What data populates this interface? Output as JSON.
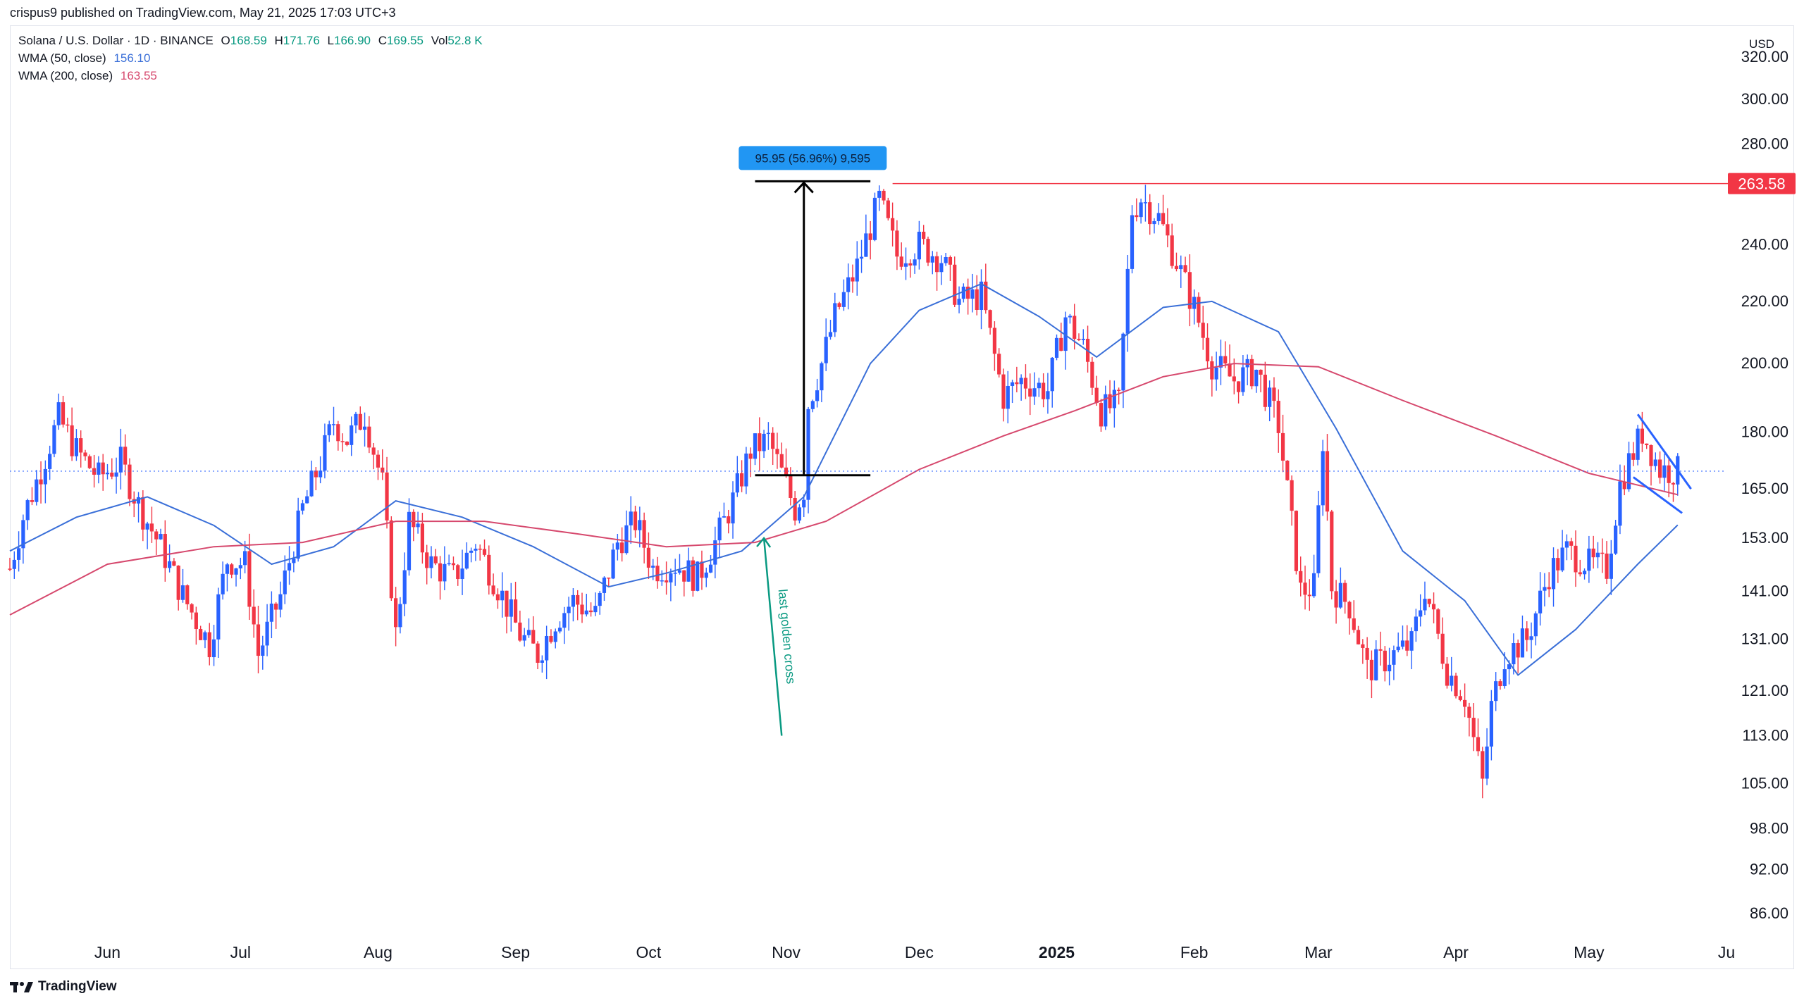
{
  "header": {
    "published_line": "crispus9 published on TradingView.com, May 21, 2025 17:03 UTC+3"
  },
  "legend": {
    "symbol": "Solana / U.S. Dollar · 1D · BINANCE",
    "o_label": "O",
    "o_value": "168.59",
    "h_label": "H",
    "h_value": "171.76",
    "l_label": "L",
    "l_value": "166.90",
    "c_label": "C",
    "c_value": "169.55",
    "vol_label": "Vol",
    "vol_value": "52.8 K",
    "wma50_label": "WMA (50, close)",
    "wma50_value": "156.10",
    "wma200_label": "WMA (200, close)",
    "wma200_value": "163.55"
  },
  "footer": {
    "brand": "TradingView",
    "logo": "tradingview-logo-icon"
  },
  "colors": {
    "up": "#2962ff",
    "down": "#f23645",
    "wma50": "#3a6fd8",
    "wma200": "#d6486d",
    "resistance": "#f23645",
    "golden_cross": "#089981",
    "measure_label": "#2196f3"
  },
  "chart_data": {
    "type": "candlestick",
    "currency_label": "USD",
    "y_ticks": [
      86,
      92,
      98,
      105,
      113,
      121,
      131,
      141,
      153,
      165,
      180,
      200,
      220,
      240,
      260,
      280,
      300,
      320
    ],
    "y_tick_labels": [
      "86.00",
      "92.00",
      "98.00",
      "105.00",
      "113.00",
      "121.00",
      "131.00",
      "141.00",
      "153.00",
      "165.00",
      "180.00",
      "200.00",
      "220.00",
      "240.00",
      "",
      "280.00",
      "300.00",
      "320.00"
    ],
    "y_scale": "log",
    "ylim": [
      83,
      336
    ],
    "x_ticks": [
      {
        "date": "2024-06-01",
        "label": "Jun"
      },
      {
        "date": "2024-07-01",
        "label": "Jul"
      },
      {
        "date": "2024-08-01",
        "label": "Aug"
      },
      {
        "date": "2024-09-01",
        "label": "Sep"
      },
      {
        "date": "2024-10-01",
        "label": "Oct"
      },
      {
        "date": "2024-11-01",
        "label": "Nov"
      },
      {
        "date": "2024-12-01",
        "label": "Dec"
      },
      {
        "date": "2025-01-01",
        "label": "2025"
      },
      {
        "date": "2025-02-01",
        "label": "Feb"
      },
      {
        "date": "2025-03-01",
        "label": "Mar"
      },
      {
        "date": "2025-04-01",
        "label": "Apr"
      },
      {
        "date": "2025-05-01",
        "label": "May"
      },
      {
        "date": "2025-06-01",
        "label": "Ju"
      }
    ],
    "xlim": [
      "2024-05-10",
      "2025-06-01"
    ],
    "close_path": [
      [
        "2024-05-10",
        146
      ],
      [
        "2024-05-13",
        158
      ],
      [
        "2024-05-17",
        170
      ],
      [
        "2024-05-21",
        184
      ],
      [
        "2024-05-25",
        175
      ],
      [
        "2024-05-30",
        168
      ],
      [
        "2024-06-04",
        172
      ],
      [
        "2024-06-08",
        161
      ],
      [
        "2024-06-13",
        151
      ],
      [
        "2024-06-18",
        140
      ],
      [
        "2024-06-24",
        130
      ],
      [
        "2024-06-28",
        148
      ],
      [
        "2024-07-02",
        147
      ],
      [
        "2024-07-05",
        128
      ],
      [
        "2024-07-10",
        140
      ],
      [
        "2024-07-15",
        160
      ],
      [
        "2024-07-19",
        172
      ],
      [
        "2024-07-22",
        183
      ],
      [
        "2024-07-25",
        178
      ],
      [
        "2024-07-29",
        185
      ],
      [
        "2024-08-02",
        166
      ],
      [
        "2024-08-05",
        132
      ],
      [
        "2024-08-08",
        157
      ],
      [
        "2024-08-13",
        147
      ],
      [
        "2024-08-18",
        144
      ],
      [
        "2024-08-23",
        152
      ],
      [
        "2024-08-28",
        142
      ],
      [
        "2024-09-02",
        132
      ],
      [
        "2024-09-06",
        128
      ],
      [
        "2024-09-10",
        135
      ],
      [
        "2024-09-14",
        139
      ],
      [
        "2024-09-19",
        136
      ],
      [
        "2024-09-24",
        152
      ],
      [
        "2024-09-28",
        157
      ],
      [
        "2024-10-02",
        146
      ],
      [
        "2024-10-07",
        147
      ],
      [
        "2024-10-12",
        144
      ],
      [
        "2024-10-16",
        152
      ],
      [
        "2024-10-20",
        162
      ],
      [
        "2024-10-24",
        175
      ],
      [
        "2024-10-28",
        178
      ],
      [
        "2024-11-01",
        166
      ],
      [
        "2024-11-03",
        160
      ],
      [
        "2024-11-05",
        165
      ],
      [
        "2024-11-06",
        188
      ],
      [
        "2024-11-09",
        200
      ],
      [
        "2024-11-12",
        215
      ],
      [
        "2024-11-17",
        232
      ],
      [
        "2024-11-22",
        257
      ],
      [
        "2024-11-26",
        236
      ],
      [
        "2024-12-01",
        240
      ],
      [
        "2024-12-06",
        235
      ],
      [
        "2024-12-10",
        220
      ],
      [
        "2024-12-15",
        222
      ],
      [
        "2024-12-20",
        190
      ],
      [
        "2024-12-24",
        195
      ],
      [
        "2024-12-30",
        192
      ],
      [
        "2025-01-03",
        215
      ],
      [
        "2025-01-07",
        205
      ],
      [
        "2025-01-11",
        186
      ],
      [
        "2025-01-15",
        188
      ],
      [
        "2025-01-18",
        253
      ],
      [
        "2025-01-20",
        258
      ],
      [
        "2025-01-24",
        250
      ],
      [
        "2025-01-28",
        234
      ],
      [
        "2025-02-01",
        218
      ],
      [
        "2025-02-05",
        200
      ],
      [
        "2025-02-10",
        195
      ],
      [
        "2025-02-15",
        198
      ],
      [
        "2025-02-20",
        182
      ],
      [
        "2025-02-25",
        141
      ],
      [
        "2025-02-28",
        142
      ],
      [
        "2025-03-02",
        178
      ],
      [
        "2025-03-04",
        142
      ],
      [
        "2025-03-08",
        138
      ],
      [
        "2025-03-12",
        125
      ],
      [
        "2025-03-18",
        128
      ],
      [
        "2025-03-22",
        130
      ],
      [
        "2025-03-25",
        142
      ],
      [
        "2025-03-30",
        125
      ],
      [
        "2025-04-03",
        120
      ],
      [
        "2025-04-07",
        105
      ],
      [
        "2025-04-09",
        118
      ],
      [
        "2025-04-12",
        128
      ],
      [
        "2025-04-17",
        131
      ],
      [
        "2025-04-22",
        145
      ],
      [
        "2025-04-26",
        150
      ],
      [
        "2025-05-01",
        147
      ],
      [
        "2025-05-05",
        146
      ],
      [
        "2025-05-08",
        166
      ],
      [
        "2025-05-10",
        172
      ],
      [
        "2025-05-13",
        180
      ],
      [
        "2025-05-17",
        170
      ],
      [
        "2025-05-21",
        169.55
      ]
    ],
    "wma50": [
      [
        "2024-05-10",
        150
      ],
      [
        "2024-05-25",
        158
      ],
      [
        "2024-06-10",
        163
      ],
      [
        "2024-06-25",
        156
      ],
      [
        "2024-07-08",
        147
      ],
      [
        "2024-07-22",
        151
      ],
      [
        "2024-08-05",
        162
      ],
      [
        "2024-08-20",
        158
      ],
      [
        "2024-09-05",
        151
      ],
      [
        "2024-09-22",
        142
      ],
      [
        "2024-10-05",
        145
      ],
      [
        "2024-10-22",
        150
      ],
      [
        "2024-11-05",
        163
      ],
      [
        "2024-11-20",
        200
      ],
      [
        "2024-12-01",
        217
      ],
      [
        "2024-12-15",
        226
      ],
      [
        "2024-12-28",
        215
      ],
      [
        "2025-01-10",
        202
      ],
      [
        "2025-01-25",
        218
      ],
      [
        "2025-02-05",
        220
      ],
      [
        "2025-02-20",
        210
      ],
      [
        "2025-03-05",
        181
      ],
      [
        "2025-03-20",
        150
      ],
      [
        "2025-04-03",
        139
      ],
      [
        "2025-04-15",
        124
      ],
      [
        "2025-04-28",
        133
      ],
      [
        "2025-05-12",
        147
      ],
      [
        "2025-05-21",
        156.1
      ]
    ],
    "wma200": [
      [
        "2024-05-10",
        136
      ],
      [
        "2024-06-01",
        147
      ],
      [
        "2024-06-25",
        151
      ],
      [
        "2024-07-15",
        152
      ],
      [
        "2024-08-05",
        157
      ],
      [
        "2024-08-25",
        157
      ],
      [
        "2024-09-15",
        154
      ],
      [
        "2024-10-05",
        151
      ],
      [
        "2024-10-25",
        152
      ],
      [
        "2024-11-10",
        157
      ],
      [
        "2024-12-01",
        170
      ],
      [
        "2024-12-20",
        179
      ],
      [
        "2025-01-05",
        186
      ],
      [
        "2025-01-25",
        196
      ],
      [
        "2025-02-10",
        200
      ],
      [
        "2025-03-01",
        199
      ],
      [
        "2025-03-20",
        189
      ],
      [
        "2025-04-10",
        179
      ],
      [
        "2025-05-01",
        169
      ],
      [
        "2025-05-21",
        163.55
      ]
    ],
    "current_price": 169.55,
    "annotations": {
      "resistance": {
        "price": 263.58,
        "label": "263.58",
        "from": "2024-11-25",
        "to": "2025-06-01"
      },
      "measure": {
        "label": "95.95 (56.96%) 9,595",
        "date": "2024-11-05",
        "from_price": 168.5,
        "to_price": 264.5,
        "bar_from": "2024-10-25",
        "bar_to": "2024-11-20"
      },
      "golden_cross": {
        "label": "last golden cross",
        "arrow_tip": [
          "2024-10-27",
          153
        ],
        "arrow_tail": [
          "2024-10-31",
          113
        ]
      },
      "wedge": {
        "upper": [
          [
            "2025-05-12",
            185
          ],
          [
            "2025-05-24",
            165
          ]
        ],
        "lower": [
          [
            "2025-05-11",
            168
          ],
          [
            "2025-05-22",
            159
          ]
        ]
      }
    }
  }
}
